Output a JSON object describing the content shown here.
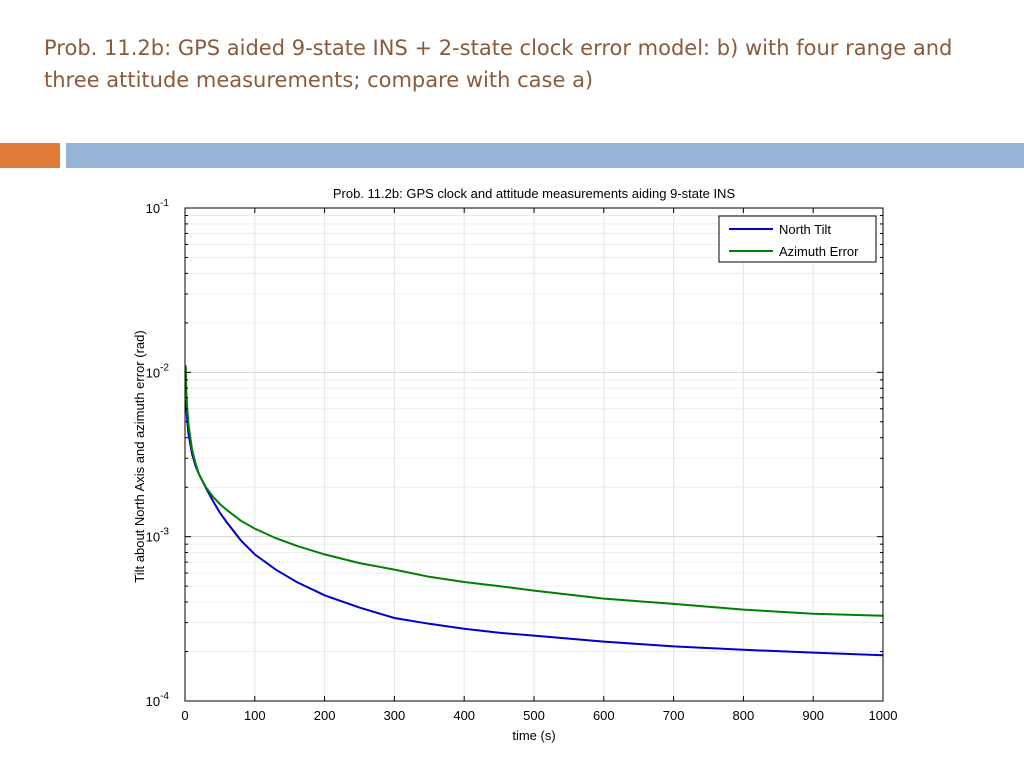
{
  "slide": {
    "title": "Prob. 11.2b: GPS aided 9-state INS + 2-state clock error model: b) with four range and three attitude measurements; compare with case a)",
    "colors": {
      "title": "#8B5A3C",
      "accent_orange": "#E07B39",
      "accent_blue": "#95B3D7"
    }
  },
  "chart_data": {
    "type": "line",
    "title": "Prob. 11.2b: GPS clock and attitude measurements aiding 9-state INS",
    "xlabel": "time (s)",
    "ylabel": "Tilt about North Axis and azimuth error (rad)",
    "xlim": [
      0,
      1000
    ],
    "ylim": [
      0.0001,
      0.1
    ],
    "yscale": "log",
    "grid": true,
    "xticks": [
      0,
      100,
      200,
      300,
      400,
      500,
      600,
      700,
      800,
      900,
      1000
    ],
    "xtick_labels": [
      "0",
      "100",
      "200",
      "300",
      "400",
      "500",
      "600",
      "700",
      "800",
      "900",
      "1000"
    ],
    "ytick_labels": [
      {
        "base": "10",
        "exp": "-1",
        "value": 0.1
      },
      {
        "base": "10",
        "exp": "-2",
        "value": 0.01
      },
      {
        "base": "10",
        "exp": "-3",
        "value": 0.001
      },
      {
        "base": "10",
        "exp": "-4",
        "value": 0.0001
      }
    ],
    "legend_position": "top-right",
    "series": [
      {
        "name": "North Tilt",
        "color": "#0000CC",
        "x": [
          1,
          3,
          5,
          10,
          15,
          20,
          30,
          40,
          50,
          60,
          80,
          100,
          130,
          160,
          200,
          250,
          300,
          350,
          400,
          450,
          500,
          600,
          700,
          800,
          900,
          1000
        ],
        "y": [
          0.0068,
          0.0052,
          0.0042,
          0.0032,
          0.0027,
          0.0024,
          0.00198,
          0.00165,
          0.0014,
          0.00122,
          0.00095,
          0.00078,
          0.00063,
          0.00053,
          0.00044,
          0.00037,
          0.00032,
          0.000295,
          0.000275,
          0.00026,
          0.00025,
          0.00023,
          0.000215,
          0.000205,
          0.000197,
          0.00019
        ]
      },
      {
        "name": "Azimuth Error",
        "color": "#008000",
        "x": [
          1,
          2,
          3,
          5,
          10,
          15,
          20,
          30,
          40,
          50,
          60,
          80,
          100,
          130,
          160,
          200,
          250,
          300,
          350,
          400,
          450,
          500,
          600,
          700,
          800,
          900,
          1000
        ],
        "y": [
          0.011,
          0.0075,
          0.0062,
          0.0048,
          0.0034,
          0.0028,
          0.0024,
          0.002,
          0.00175,
          0.00158,
          0.00145,
          0.00125,
          0.00112,
          0.00098,
          0.00088,
          0.00078,
          0.00069,
          0.00063,
          0.00057,
          0.00053,
          0.0005,
          0.00047,
          0.00042,
          0.00039,
          0.00036,
          0.00034,
          0.00033
        ]
      }
    ]
  }
}
